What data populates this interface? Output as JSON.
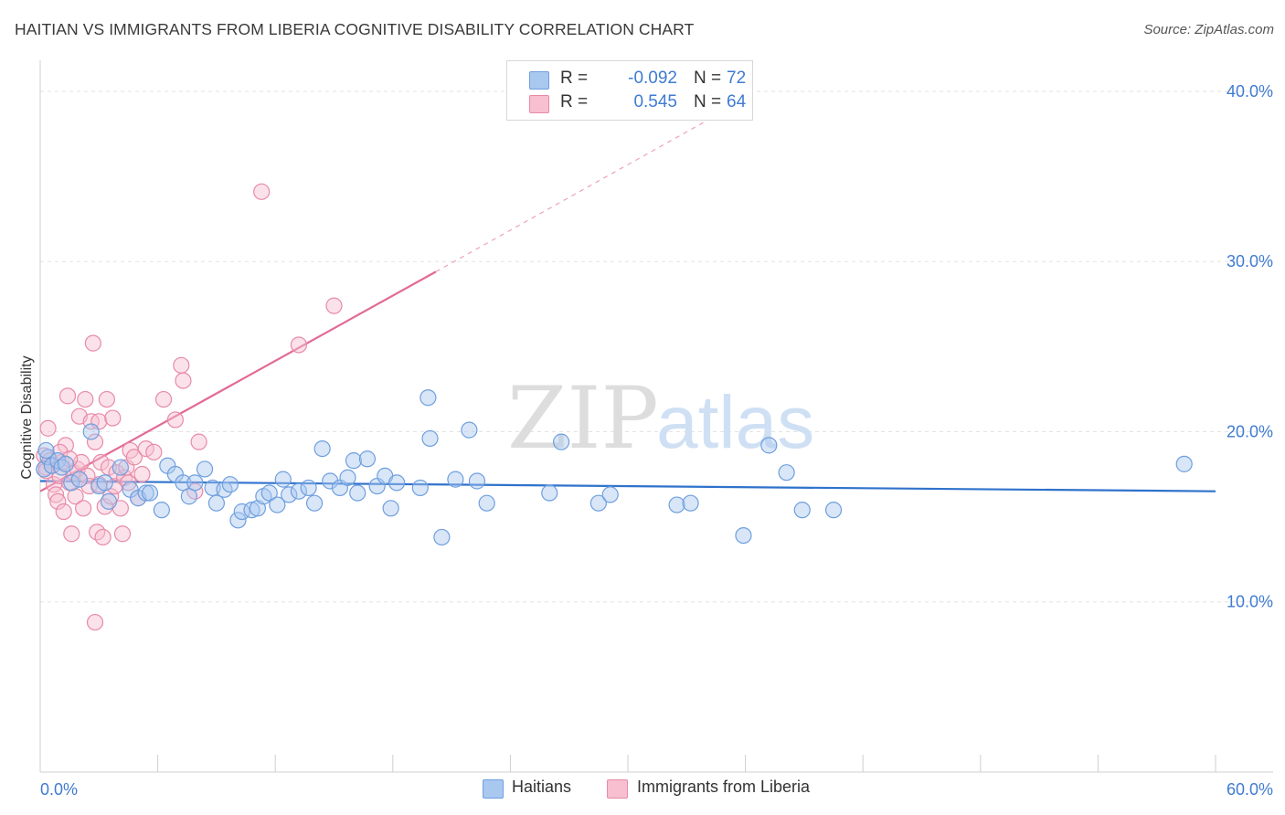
{
  "title": "HAITIAN VS IMMIGRANTS FROM LIBERIA COGNITIVE DISABILITY CORRELATION CHART",
  "source": "Source: ZipAtlas.com",
  "watermark": {
    "zip": "ZIP",
    "atlas": "atlas"
  },
  "legend": {
    "r_label": "R =",
    "n_label": "N =",
    "rows": [
      {
        "r": "-0.092",
        "n": "72",
        "fill": "#a9c8f0",
        "stroke": "#6f9fde"
      },
      {
        "r": "0.545",
        "n": "64",
        "fill": "#f7bfd0",
        "stroke": "#e88aa8"
      }
    ]
  },
  "bottom_legend": [
    {
      "label": "Haitians",
      "fill": "#a9c8f0",
      "stroke": "#6f9fde"
    },
    {
      "label": "Immigrants from Liberia",
      "fill": "#f7bfd0",
      "stroke": "#e88aa8"
    }
  ],
  "chart_data": {
    "type": "scatter",
    "title": "HAITIAN VS IMMIGRANTS FROM LIBERIA COGNITIVE DISABILITY CORRELATION CHART",
    "xlabel": "",
    "ylabel": "Cognitive Disability",
    "xlim": [
      0,
      60
    ],
    "ylim": [
      0,
      41.5
    ],
    "x_tick_labels": {
      "min": "0.0%",
      "max": "60.0%"
    },
    "y_ticks": [
      10,
      20,
      30,
      40
    ],
    "y_tick_labels": [
      "10.0%",
      "20.0%",
      "30.0%",
      "40.0%"
    ],
    "grid": "horizontal dashed",
    "series": [
      {
        "name": "Haitians",
        "color": "#4a86d8",
        "fill": "#a9c8f0",
        "trend": {
          "x0": 0,
          "y0": 17.1,
          "x1": 60,
          "y1": 16.5
        },
        "points": [
          [
            0.2,
            17.8
          ],
          [
            0.4,
            18.5
          ],
          [
            0.6,
            18.0
          ],
          [
            0.9,
            18.3
          ],
          [
            1.1,
            17.9
          ],
          [
            1.3,
            18.1
          ],
          [
            1.6,
            17.0
          ],
          [
            2.0,
            17.2
          ],
          [
            2.6,
            20.0
          ],
          [
            3.0,
            16.8
          ],
          [
            3.3,
            17.0
          ],
          [
            3.5,
            15.9
          ],
          [
            4.1,
            17.9
          ],
          [
            4.6,
            16.6
          ],
          [
            5.0,
            16.1
          ],
          [
            5.4,
            16.4
          ],
          [
            5.6,
            16.4
          ],
          [
            6.2,
            15.4
          ],
          [
            6.5,
            18.0
          ],
          [
            6.9,
            17.5
          ],
          [
            7.3,
            17.0
          ],
          [
            7.6,
            16.2
          ],
          [
            7.9,
            17.0
          ],
          [
            8.4,
            17.8
          ],
          [
            8.8,
            16.7
          ],
          [
            9.0,
            15.8
          ],
          [
            9.4,
            16.6
          ],
          [
            9.7,
            16.9
          ],
          [
            10.1,
            14.8
          ],
          [
            10.3,
            15.3
          ],
          [
            10.8,
            15.4
          ],
          [
            11.1,
            15.5
          ],
          [
            11.4,
            16.2
          ],
          [
            11.7,
            16.4
          ],
          [
            12.1,
            15.7
          ],
          [
            12.4,
            17.2
          ],
          [
            12.7,
            16.3
          ],
          [
            13.2,
            16.5
          ],
          [
            13.7,
            16.7
          ],
          [
            14.0,
            15.8
          ],
          [
            14.4,
            19.0
          ],
          [
            14.8,
            17.1
          ],
          [
            15.3,
            16.7
          ],
          [
            15.7,
            17.3
          ],
          [
            16.0,
            18.3
          ],
          [
            16.2,
            16.4
          ],
          [
            16.7,
            18.4
          ],
          [
            17.2,
            16.8
          ],
          [
            17.6,
            17.4
          ],
          [
            17.9,
            15.5
          ],
          [
            18.2,
            17.0
          ],
          [
            19.4,
            16.7
          ],
          [
            19.8,
            22.0
          ],
          [
            19.9,
            19.6
          ],
          [
            20.5,
            13.8
          ],
          [
            21.2,
            17.2
          ],
          [
            21.9,
            20.1
          ],
          [
            22.3,
            17.1
          ],
          [
            22.8,
            15.8
          ],
          [
            26.0,
            16.4
          ],
          [
            26.6,
            19.4
          ],
          [
            28.5,
            15.8
          ],
          [
            29.1,
            16.3
          ],
          [
            32.5,
            15.7
          ],
          [
            33.2,
            15.8
          ],
          [
            35.9,
            13.9
          ],
          [
            37.2,
            19.2
          ],
          [
            38.1,
            17.6
          ],
          [
            38.9,
            15.4
          ],
          [
            40.5,
            15.4
          ],
          [
            58.4,
            18.1
          ],
          [
            0.3,
            18.9
          ]
        ]
      },
      {
        "name": "Immigrants from Liberia",
        "color": "#e26b97",
        "fill": "#f7bfd0",
        "trend": {
          "x0": 0,
          "y0": 16.5,
          "x1": 20.2,
          "y1": 29.4,
          "dash_to_x": 35,
          "dash_to_y": 38.9
        },
        "points": [
          [
            0.2,
            18.6
          ],
          [
            0.3,
            17.9
          ],
          [
            0.4,
            20.2
          ],
          [
            0.5,
            18.3
          ],
          [
            0.7,
            16.9
          ],
          [
            0.8,
            16.3
          ],
          [
            0.9,
            15.9
          ],
          [
            1.0,
            17.4
          ],
          [
            1.1,
            18.2
          ],
          [
            1.2,
            15.3
          ],
          [
            1.3,
            19.2
          ],
          [
            1.4,
            22.1
          ],
          [
            1.5,
            17.0
          ],
          [
            1.6,
            14.0
          ],
          [
            1.7,
            17.6
          ],
          [
            1.8,
            16.2
          ],
          [
            1.9,
            17.8
          ],
          [
            2.0,
            20.9
          ],
          [
            2.1,
            18.2
          ],
          [
            2.2,
            15.5
          ],
          [
            2.3,
            21.9
          ],
          [
            2.4,
            17.4
          ],
          [
            2.5,
            16.8
          ],
          [
            2.6,
            20.6
          ],
          [
            2.7,
            25.2
          ],
          [
            2.8,
            19.4
          ],
          [
            2.9,
            14.1
          ],
          [
            3.0,
            20.6
          ],
          [
            3.1,
            18.2
          ],
          [
            3.2,
            13.8
          ],
          [
            3.3,
            15.6
          ],
          [
            3.4,
            21.9
          ],
          [
            3.5,
            17.9
          ],
          [
            3.6,
            16.2
          ],
          [
            3.7,
            20.8
          ],
          [
            3.8,
            16.8
          ],
          [
            3.9,
            17.6
          ],
          [
            4.1,
            15.5
          ],
          [
            4.2,
            14.0
          ],
          [
            4.3,
            17.3
          ],
          [
            4.4,
            17.9
          ],
          [
            4.6,
            18.9
          ],
          [
            4.8,
            18.5
          ],
          [
            5.0,
            16.1
          ],
          [
            5.2,
            17.5
          ],
          [
            5.4,
            19.0
          ],
          [
            5.8,
            18.8
          ],
          [
            6.3,
            21.9
          ],
          [
            6.9,
            20.7
          ],
          [
            7.2,
            23.9
          ],
          [
            7.3,
            23.0
          ],
          [
            7.9,
            16.5
          ],
          [
            8.1,
            19.4
          ],
          [
            11.3,
            34.1
          ],
          [
            13.2,
            25.1
          ],
          [
            15.0,
            27.4
          ],
          [
            2.8,
            8.8
          ],
          [
            0.6,
            18.0
          ],
          [
            1.0,
            18.8
          ],
          [
            1.5,
            18.4
          ],
          [
            2.0,
            17.2
          ],
          [
            3.0,
            16.9
          ],
          [
            4.5,
            17.0
          ],
          [
            0.3,
            17.7
          ]
        ]
      }
    ]
  }
}
